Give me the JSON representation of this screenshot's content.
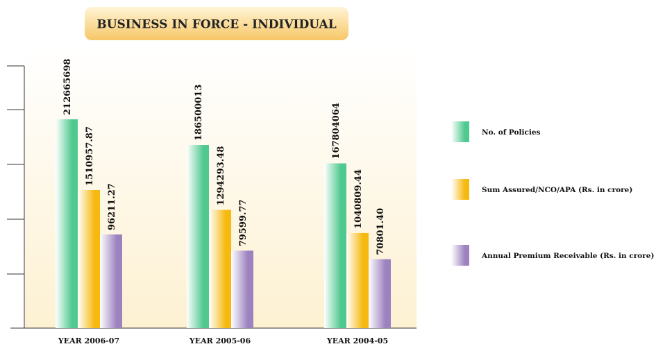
{
  "chart_data": {
    "type": "bar",
    "title": "BUSINESS IN FORCE - INDIVIDUAL",
    "categories": [
      "YEAR 2006-07",
      "YEAR 2005-06",
      "YEAR 2004-05"
    ],
    "series": [
      {
        "name": "No. of Policies",
        "color": "#4fc98f",
        "values": [
          212665698,
          186500013,
          167804064
        ]
      },
      {
        "name": "Sum Assured/NCO/APA (Rs. in crore)",
        "color": "#f6b90f",
        "values": [
          1510957.87,
          1294293.48,
          1040809.44
        ]
      },
      {
        "name": "Annual Premium Receivable (Rs. in crore)",
        "color": "#9d82c0",
        "values": [
          96211.27,
          79599.77,
          70801.4
        ],
        "value_labels": [
          "96211.27",
          "79599.77",
          "70801.40"
        ]
      }
    ],
    "legend": "right"
  }
}
